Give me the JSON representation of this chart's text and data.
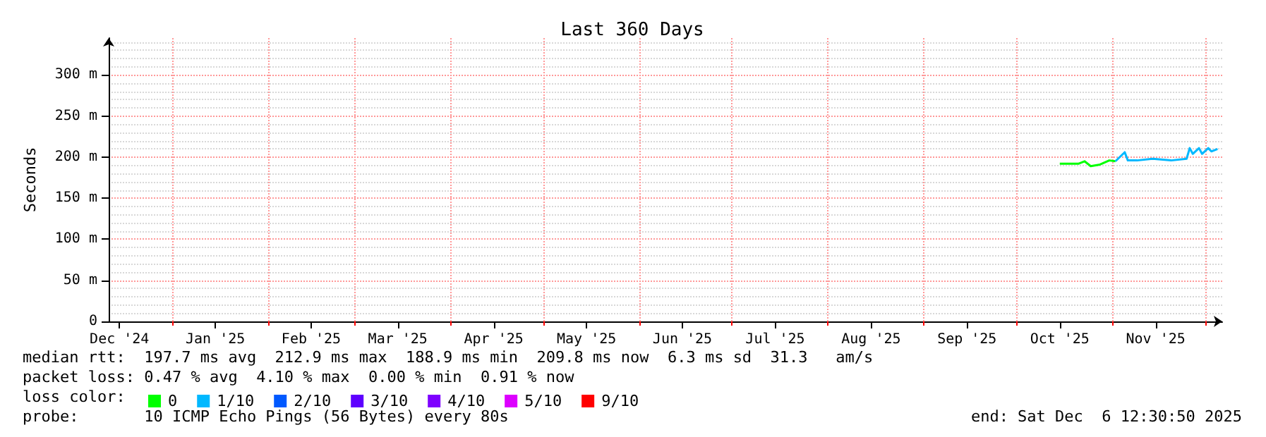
{
  "chart_data": {
    "type": "line",
    "title": "Last 360 Days",
    "ylabel": "Seconds",
    "legend_title": "loss color:",
    "xlim": [
      "2024-12-11T12:30",
      "2025-12-06T12:30"
    ],
    "xticks": [
      {
        "value": "2024-12-15",
        "label": "Dec '24"
      },
      {
        "value": "2025-01-01",
        "label": null
      },
      {
        "value": "2025-01-15",
        "label": "Jan '25"
      },
      {
        "value": "2025-02-01",
        "label": null
      },
      {
        "value": "2025-02-15",
        "label": "Feb '25"
      },
      {
        "value": "2025-03-01",
        "label": null
      },
      {
        "value": "2025-03-15",
        "label": "Mar '25"
      },
      {
        "value": "2025-04-01",
        "label": null
      },
      {
        "value": "2025-04-15",
        "label": "Apr '25"
      },
      {
        "value": "2025-05-01",
        "label": null
      },
      {
        "value": "2025-05-15",
        "label": "May '25"
      },
      {
        "value": "2025-06-01",
        "label": null
      },
      {
        "value": "2025-06-15",
        "label": "Jun '25"
      },
      {
        "value": "2025-07-01",
        "label": null
      },
      {
        "value": "2025-07-15",
        "label": "Jul '25"
      },
      {
        "value": "2025-08-01",
        "label": null
      },
      {
        "value": "2025-08-15",
        "label": "Aug '25"
      },
      {
        "value": "2025-09-01",
        "label": null
      },
      {
        "value": "2025-09-15",
        "label": "Sep '25"
      },
      {
        "value": "2025-10-01",
        "label": null
      },
      {
        "value": "2025-10-15",
        "label": "Oct '25"
      },
      {
        "value": "2025-11-01",
        "label": null
      },
      {
        "value": "2025-11-15",
        "label": "Nov '25"
      },
      {
        "value": "2025-12-01",
        "label": null
      }
    ],
    "ylim": [
      0,
      345
    ],
    "yticks": [
      {
        "value": 0,
        "label": "0"
      },
      {
        "value": 50,
        "label": "50 m"
      },
      {
        "value": 100,
        "label": "100 m"
      },
      {
        "value": 150,
        "label": "150 m"
      },
      {
        "value": 200,
        "label": "200 m"
      },
      {
        "value": 250,
        "label": "250 m"
      },
      {
        "value": 300,
        "label": "300 m"
      }
    ],
    "grid": true,
    "legend": "bottom",
    "marker": "none",
    "line_style": "solid",
    "series": [
      {
        "name": "0",
        "color": "#00ff00",
        "x": [
          "2025-10-15",
          "2025-10-21",
          "2025-10-23",
          "2025-10-25",
          "2025-10-28",
          "2025-10-31",
          "2025-11-02"
        ],
        "values": [
          192,
          192,
          195,
          189,
          191,
          196,
          195
        ]
      },
      {
        "name": "1/10",
        "color": "#00b8ff",
        "x": [
          "2025-11-02",
          "2025-11-05",
          "2025-11-06",
          "2025-11-09",
          "2025-11-14",
          "2025-11-20",
          "2025-11-25",
          "2025-11-26",
          "2025-11-27",
          "2025-11-29",
          "2025-11-30",
          "2025-12-02",
          "2025-12-03",
          "2025-12-05"
        ],
        "values": [
          195,
          206,
          196,
          196,
          198,
          196,
          198,
          211,
          204,
          211,
          204,
          211,
          207,
          210
        ]
      },
      {
        "name": "2/10",
        "color": "#0059ff"
      },
      {
        "name": "3/10",
        "color": "#5e00ff"
      },
      {
        "name": "4/10",
        "color": "#7e00ff"
      },
      {
        "name": "5/10",
        "color": "#dd00ff"
      },
      {
        "name": "9/10",
        "color": "#ff0000"
      }
    ],
    "annotations": [
      "median rtt:  197.7 ms avg  212.9 ms max  188.9 ms min  209.8 ms now  6.3 ms sd  31.3   am/s",
      "packet loss: 0.47 % avg  4.10 % max  0.00 % min  0.91 % now",
      "probe:       10 ICMP Echo Pings (56 Bytes) every 80s",
      "end: Sat Dec  6 12:30:50 2025"
    ]
  }
}
